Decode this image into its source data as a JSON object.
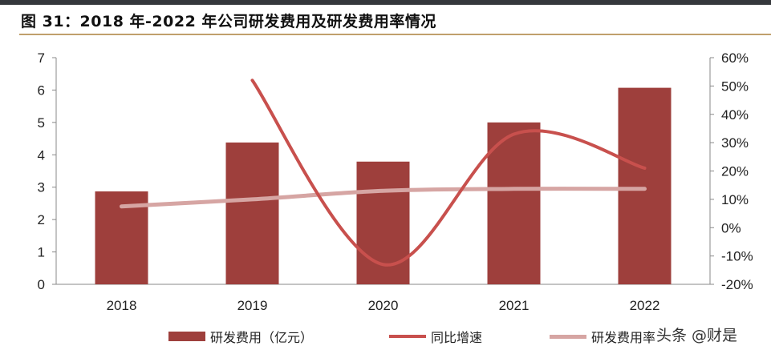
{
  "title": "图 31：2018 年-2022 年公司研发费用及研发费用率情况",
  "watermark": "头条 @财是",
  "chart_data": {
    "type": "bar",
    "title": "图 31：2018 年-2022 年公司研发费用及研发费用率情况",
    "categories": [
      "2018",
      "2019",
      "2020",
      "2021",
      "2022"
    ],
    "y_left": {
      "range": [
        0,
        7
      ],
      "ticks": [
        "0",
        "1",
        "2",
        "3",
        "4",
        "5",
        "6",
        "7"
      ]
    },
    "y_right": {
      "range": [
        -20,
        60
      ],
      "ticks": [
        "-20%",
        "-10%",
        "0%",
        "10%",
        "20%",
        "30%",
        "40%",
        "50%",
        "60%"
      ]
    },
    "grid": false,
    "legend_position": "bottom",
    "series": [
      {
        "name": "研发费用（亿元）",
        "type": "bar",
        "axis": "left",
        "color": "#9e3f3c",
        "values": [
          2.87,
          4.38,
          3.79,
          5.0,
          6.07
        ]
      },
      {
        "name": "同比增速",
        "type": "line",
        "axis": "right",
        "unit": "%",
        "color": "#c8504d",
        "values": [
          null,
          52,
          -13,
          33,
          21
        ]
      },
      {
        "name": "研发费用率",
        "type": "line",
        "axis": "right",
        "unit": "%",
        "color": "#d6a5a3",
        "values": [
          7.5,
          10,
          13,
          13.7,
          13.7
        ]
      }
    ]
  }
}
